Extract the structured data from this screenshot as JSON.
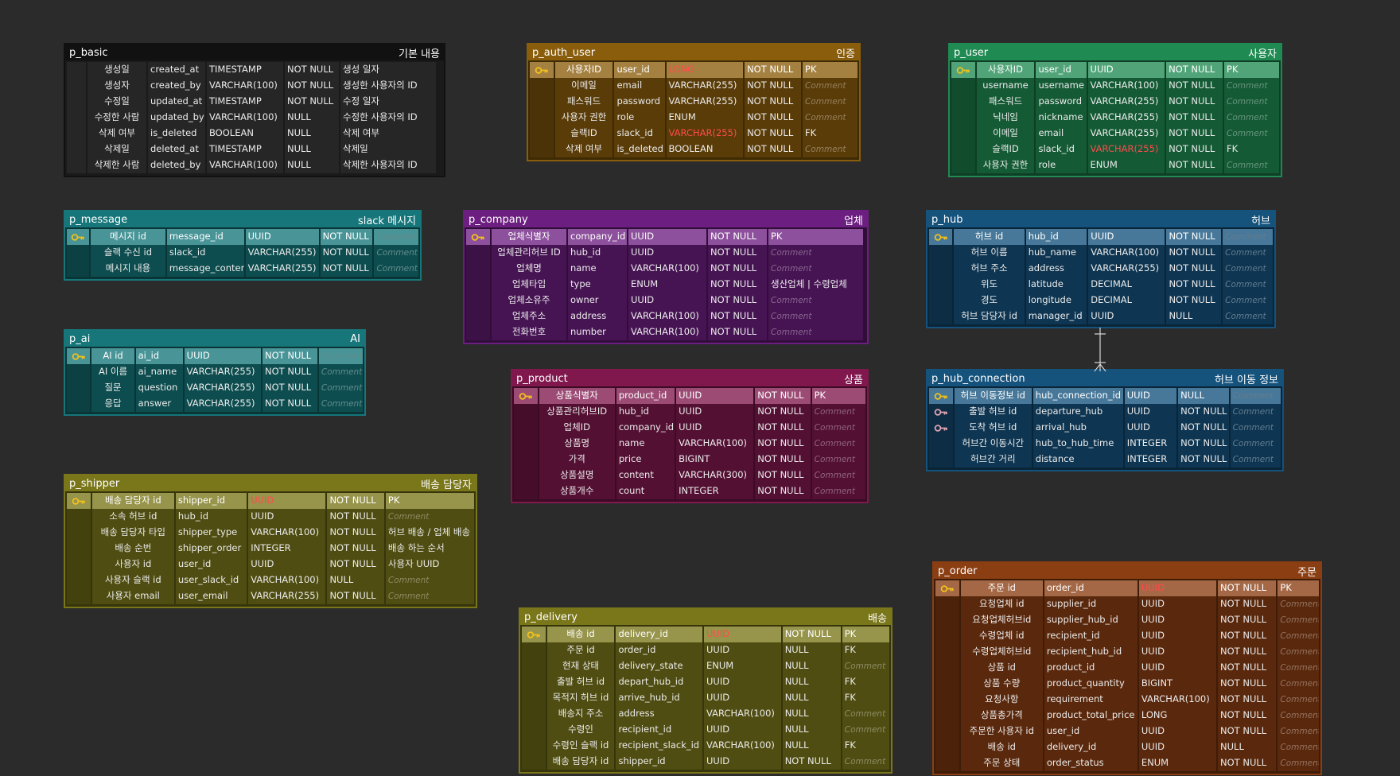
{
  "tables": [
    {
      "id": "p_basic",
      "name": "p_basic",
      "label": "기본 내용",
      "color": "#111111",
      "header_text": "#ffffff",
      "pk_text": "#ffffff",
      "rows": [
        {
          "key": "",
          "cols": [
            "생성일",
            "created_at",
            "TIMESTAMP",
            "NOT NULL",
            "생성 일자"
          ]
        },
        {
          "key": "",
          "cols": [
            "생성자",
            "created_by",
            "VARCHAR(100)",
            "NOT NULL",
            "생성한 사용자의 ID"
          ]
        },
        {
          "key": "",
          "cols": [
            "수정일",
            "updated_at",
            "TIMESTAMP",
            "NOT NULL",
            "수정 일자"
          ]
        },
        {
          "key": "",
          "cols": [
            "수정한 사람",
            "updated_by",
            "VARCHAR(100)",
            "NULL",
            "수정한 사용자의 ID"
          ]
        },
        {
          "key": "",
          "cols": [
            "삭제 여부",
            "is_deleted",
            "BOOLEAN",
            "NULL",
            "삭제 여부"
          ]
        },
        {
          "key": "",
          "cols": [
            "삭제일",
            "deleted_at",
            "TIMESTAMP",
            "NULL",
            "삭제일"
          ]
        },
        {
          "key": "",
          "cols": [
            "삭제한 사람",
            "deleted_by",
            "VARCHAR(100)",
            "NULL",
            "삭제한 사용자의 ID"
          ]
        }
      ]
    },
    {
      "id": "p_auth_user",
      "name": "p_auth_user",
      "label": "인증",
      "color": "#8a5d0c",
      "header_text": "#ffffff",
      "pk_text": "#ffffff",
      "rows": [
        {
          "key": "pk",
          "cols": [
            "사용자ID",
            "user_id",
            "LONG",
            "NOT NULL",
            "PK"
          ],
          "red": [
            2
          ]
        },
        {
          "key": "",
          "cols": [
            "이메일",
            "email",
            "VARCHAR(255)",
            "NOT NULL",
            "Comment"
          ],
          "comment": true
        },
        {
          "key": "",
          "cols": [
            "패스워드",
            "password",
            "VARCHAR(255)",
            "NOT NULL",
            "Comment"
          ],
          "comment": true
        },
        {
          "key": "",
          "cols": [
            "사용자 권한",
            "role",
            "ENUM",
            "NOT NULL",
            "Comment"
          ],
          "comment": true
        },
        {
          "key": "",
          "cols": [
            "슬랙ID",
            "slack_id",
            "VARCHAR(255)",
            "NOT NULL",
            "FK"
          ],
          "red": [
            2
          ]
        },
        {
          "key": "",
          "cols": [
            "삭제 여부",
            "is_deleted",
            "BOOLEAN",
            "NOT NULL",
            "Comment"
          ],
          "comment": true
        }
      ]
    },
    {
      "id": "p_user",
      "name": "p_user",
      "label": "사용자",
      "color": "#1f8a52",
      "header_text": "#ffffff",
      "pk_text": "#ffffff",
      "rows": [
        {
          "key": "pk",
          "cols": [
            "사용자ID",
            "user_id",
            "UUID",
            "NOT NULL",
            "PK"
          ]
        },
        {
          "key": "",
          "cols": [
            "username",
            "username",
            "VARCHAR(100)",
            "NOT NULL",
            "Comment"
          ],
          "comment": true
        },
        {
          "key": "",
          "cols": [
            "패스워드",
            "password",
            "VARCHAR(255)",
            "NOT NULL",
            "Comment"
          ],
          "comment": true
        },
        {
          "key": "",
          "cols": [
            "닉네임",
            "nickname",
            "VARCHAR(255)",
            "NOT NULL",
            "Comment"
          ],
          "comment": true
        },
        {
          "key": "",
          "cols": [
            "이메일",
            "email",
            "VARCHAR(255)",
            "NOT NULL",
            "Comment"
          ],
          "comment": true
        },
        {
          "key": "",
          "cols": [
            "슬랙ID",
            "slack_id",
            "VARCHAR(255)",
            "NOT NULL",
            "FK"
          ],
          "red": [
            2
          ]
        },
        {
          "key": "",
          "cols": [
            "사용자 권한",
            "role",
            "ENUM",
            "NOT NULL",
            "Comment"
          ],
          "comment": true
        }
      ]
    },
    {
      "id": "p_message",
      "name": "p_message",
      "label": "slack 메시지",
      "color": "#16767a",
      "header_text": "#ffffff",
      "pk_text": "#ffffff",
      "rows": [
        {
          "key": "pk",
          "cols": [
            "메시지 id",
            "message_id",
            "UUID",
            "NOT NULL",
            "Comment"
          ],
          "comment": true
        },
        {
          "key": "",
          "cols": [
            "슬랙 수신 id",
            "slack_id",
            "VARCHAR(255)",
            "NOT NULL",
            "Comment"
          ],
          "comment": true
        },
        {
          "key": "",
          "cols": [
            "메시지 내용",
            "message_content",
            "VARCHAR(255)",
            "NOT NULL",
            "Comment"
          ],
          "comment": true
        }
      ]
    },
    {
      "id": "p_company",
      "name": "p_company",
      "label": "업체",
      "color": "#6c1f80",
      "header_text": "#ffffff",
      "pk_text": "#ffffff",
      "rows": [
        {
          "key": "pk",
          "cols": [
            "업체식별자",
            "company_id",
            "UUID",
            "NOT NULL",
            "PK"
          ]
        },
        {
          "key": "",
          "cols": [
            "업체관리허브 ID",
            "hub_id",
            "UUID",
            "NOT NULL",
            "Comment"
          ],
          "comment": true
        },
        {
          "key": "",
          "cols": [
            "업체명",
            "name",
            "VARCHAR(100)",
            "NOT NULL",
            "Comment"
          ],
          "comment": true
        },
        {
          "key": "",
          "cols": [
            "업체타입",
            "type",
            "ENUM",
            "NOT NULL",
            "생산업체 | 수령업체"
          ]
        },
        {
          "key": "",
          "cols": [
            "업체소유주",
            "owner",
            "UUID",
            "NOT NULL",
            "Comment"
          ],
          "comment": true
        },
        {
          "key": "",
          "cols": [
            "업체주소",
            "address",
            "VARCHAR(100)",
            "NOT NULL",
            "Comment"
          ],
          "comment": true
        },
        {
          "key": "",
          "cols": [
            "전화번호",
            "number",
            "VARCHAR(100)",
            "NOT NULL",
            "Comment"
          ],
          "comment": true
        }
      ]
    },
    {
      "id": "p_hub",
      "name": "p_hub",
      "label": "허브",
      "color": "#15527c",
      "header_text": "#ffffff",
      "pk_text": "#ffffff",
      "rows": [
        {
          "key": "pk",
          "cols": [
            "허브 id",
            "hub_id",
            "UUID",
            "NOT NULL",
            "Comment"
          ],
          "comment": true
        },
        {
          "key": "",
          "cols": [
            "허브 이름",
            "hub_name",
            "VARCHAR(100)",
            "NOT NULL",
            "Comment"
          ],
          "comment": true
        },
        {
          "key": "",
          "cols": [
            "허브 주소",
            "address",
            "VARCHAR(255)",
            "NOT NULL",
            "Comment"
          ],
          "comment": true
        },
        {
          "key": "",
          "cols": [
            "위도",
            "latitude",
            "DECIMAL",
            "NOT NULL",
            "Comment"
          ],
          "comment": true
        },
        {
          "key": "",
          "cols": [
            "경도",
            "longitude",
            "DECIMAL",
            "NOT NULL",
            "Comment"
          ],
          "comment": true
        },
        {
          "key": "",
          "cols": [
            "허브 담당자 id",
            "manager_id",
            "UUID",
            "NULL",
            "Comment"
          ],
          "comment": true
        }
      ]
    },
    {
      "id": "p_ai",
      "name": "p_ai",
      "label": "AI",
      "color": "#16767a",
      "header_text": "#ffffff",
      "pk_text": "#ffffff",
      "rows": [
        {
          "key": "pk",
          "cols": [
            "AI id",
            "ai_id",
            "UUID",
            "NOT NULL",
            "Comment"
          ],
          "comment": true
        },
        {
          "key": "",
          "cols": [
            "AI 이름",
            "ai_name",
            "VARCHAR(255)",
            "NOT NULL",
            "Comment"
          ],
          "comment": true
        },
        {
          "key": "",
          "cols": [
            "질문",
            "question",
            "VARCHAR(255)",
            "NOT NULL",
            "Comment"
          ],
          "comment": true
        },
        {
          "key": "",
          "cols": [
            "응답",
            "answer",
            "VARCHAR(255)",
            "NOT NULL",
            "Comment"
          ],
          "comment": true
        }
      ]
    },
    {
      "id": "p_product",
      "name": "p_product",
      "label": "상품",
      "color": "#80184e",
      "header_text": "#ffffff",
      "pk_text": "#ffffff",
      "rows": [
        {
          "key": "pk",
          "cols": [
            "상품식별자",
            "product_id",
            "UUID",
            "NOT NULL",
            "PK"
          ]
        },
        {
          "key": "",
          "cols": [
            "상품관리허브ID",
            "hub_id",
            "UUID",
            "NOT NULL",
            "Comment"
          ],
          "comment": true
        },
        {
          "key": "",
          "cols": [
            "업체ID",
            "company_id",
            "UUID",
            "NOT NULL",
            "Comment"
          ],
          "comment": true
        },
        {
          "key": "",
          "cols": [
            "상품명",
            "name",
            "VARCHAR(100)",
            "NOT NULL",
            "Comment"
          ],
          "comment": true
        },
        {
          "key": "",
          "cols": [
            "가격",
            "price",
            "BIGINT",
            "NOT NULL",
            "Comment"
          ],
          "comment": true
        },
        {
          "key": "",
          "cols": [
            "상품설명",
            "content",
            "VARCHAR(300)",
            "NOT NULL",
            "Comment"
          ],
          "comment": true
        },
        {
          "key": "",
          "cols": [
            "상품개수",
            "count",
            "INTEGER",
            "NOT NULL",
            "Comment"
          ],
          "comment": true
        }
      ]
    },
    {
      "id": "p_hub_connection",
      "name": "p_hub_connection",
      "label": "허브 이동 정보",
      "color": "#15527c",
      "header_text": "#ffffff",
      "pk_text": "#ffffff",
      "rows": [
        {
          "key": "pk",
          "cols": [
            "허브 이동정보 id",
            "hub_connection_id",
            "UUID",
            "NULL",
            "Comment"
          ],
          "comment": true
        },
        {
          "key": "fk",
          "cols": [
            "출발 허브 id",
            "departure_hub",
            "UUID",
            "NOT NULL",
            "Comment"
          ],
          "comment": true
        },
        {
          "key": "fk",
          "cols": [
            "도착 허브 id",
            "arrival_hub",
            "UUID",
            "NOT NULL",
            "Comment"
          ],
          "comment": true
        },
        {
          "key": "",
          "cols": [
            "허브간 이동시간",
            "hub_to_hub_time",
            "INTEGER",
            "NOT NULL",
            "Comment"
          ],
          "comment": true
        },
        {
          "key": "",
          "cols": [
            "허브간 거리",
            "distance",
            "INTEGER",
            "NOT NULL",
            "Comment"
          ],
          "comment": true
        }
      ]
    },
    {
      "id": "p_shipper",
      "name": "p_shipper",
      "label": "배송 담당자",
      "color": "#7a761a",
      "header_text": "#ffffff",
      "pk_text": "#ffffff",
      "rows": [
        {
          "key": "pk",
          "cols": [
            "배송 담당자 id",
            "shipper_id",
            "UUID",
            "NOT NULL",
            "PK"
          ],
          "red": [
            2
          ]
        },
        {
          "key": "",
          "cols": [
            "소속 허브 id",
            "hub_id",
            "UUID",
            "NOT NULL",
            "Comment"
          ],
          "comment": true
        },
        {
          "key": "",
          "cols": [
            "배송 담당자 타입",
            "shipper_type",
            "VARCHAR(100)",
            "NOT NULL",
            "허브 배송 / 업체 배송"
          ]
        },
        {
          "key": "",
          "cols": [
            "배송 순번",
            "shipper_order",
            "INTEGER",
            "NOT NULL",
            "배송 하는 순서"
          ]
        },
        {
          "key": "",
          "cols": [
            "사용자 id",
            "user_id",
            "UUID",
            "NOT NULL",
            "사용자 UUID"
          ]
        },
        {
          "key": "",
          "cols": [
            "사용자 슬랙 id",
            "user_slack_id",
            "VARCHAR(100)",
            "NULL",
            "Comment"
          ],
          "comment": true
        },
        {
          "key": "",
          "cols": [
            "사용자 email",
            "user_email",
            "VARCHAR(255)",
            "NOT NULL",
            "Comment"
          ],
          "comment": true
        }
      ]
    },
    {
      "id": "p_delivery",
      "name": "p_delivery",
      "label": "배송",
      "color": "#7a761a",
      "header_text": "#ffffff",
      "pk_text": "#ffffff",
      "rows": [
        {
          "key": "pk",
          "cols": [
            "배송 id",
            "delivery_id",
            "UUID",
            "NOT NULL",
            "PK"
          ],
          "red": [
            2
          ]
        },
        {
          "key": "",
          "cols": [
            "주문 id",
            "order_id",
            "UUID",
            "NULL",
            "FK"
          ]
        },
        {
          "key": "",
          "cols": [
            "현재 상태",
            "delivery_state",
            "ENUM",
            "NULL",
            "Comment"
          ],
          "comment": true
        },
        {
          "key": "",
          "cols": [
            "출발 허브 id",
            "depart_hub_id",
            "UUID",
            "NULL",
            "FK"
          ]
        },
        {
          "key": "",
          "cols": [
            "목적지 허브 id",
            "arrive_hub_id",
            "UUID",
            "NULL",
            "FK"
          ]
        },
        {
          "key": "",
          "cols": [
            "배송지 주소",
            "address",
            "VARCHAR(100)",
            "NULL",
            "Comment"
          ],
          "comment": true
        },
        {
          "key": "",
          "cols": [
            "수령인",
            "recipient_id",
            "UUID",
            "NULL",
            "Comment"
          ],
          "comment": true
        },
        {
          "key": "",
          "cols": [
            "수령인 슬랙 id",
            "recipient_slack_id",
            "VARCHAR(100)",
            "NULL",
            "FK"
          ]
        },
        {
          "key": "",
          "cols": [
            "배송 담당자 id",
            "shipper_id",
            "UUID",
            "NOT NULL",
            "Comment"
          ],
          "comment": true
        }
      ]
    },
    {
      "id": "p_order",
      "name": "p_order",
      "label": "주문",
      "color": "#8a3e12",
      "header_text": "#ffffff",
      "pk_text": "#ffffff",
      "rows": [
        {
          "key": "pk",
          "cols": [
            "주문 id",
            "order_id",
            "UUID",
            "NOT NULL",
            "PK"
          ],
          "red": [
            2
          ]
        },
        {
          "key": "",
          "cols": [
            "요청업체 id",
            "supplier_id",
            "UUID",
            "NOT NULL",
            "Comment"
          ],
          "comment": true
        },
        {
          "key": "",
          "cols": [
            "요청업체허브id",
            "supplier_hub_id",
            "UUID",
            "NOT NULL",
            "Comment"
          ],
          "comment": true
        },
        {
          "key": "",
          "cols": [
            "수령업체 id",
            "recipient_id",
            "UUID",
            "NOT NULL",
            "Comment"
          ],
          "comment": true
        },
        {
          "key": "",
          "cols": [
            "수령업체허브id",
            "recipient_hub_id",
            "UUID",
            "NOT NULL",
            "Comment"
          ],
          "comment": true
        },
        {
          "key": "",
          "cols": [
            "상품 id",
            "product_id",
            "UUID",
            "NOT NULL",
            "Comment"
          ],
          "comment": true
        },
        {
          "key": "",
          "cols": [
            "상품 수량",
            "product_quantity",
            "BIGINT",
            "NOT NULL",
            "Comment"
          ],
          "comment": true
        },
        {
          "key": "",
          "cols": [
            "요청사항",
            "requirement",
            "VARCHAR(100)",
            "NOT NULL",
            "Comment"
          ],
          "comment": true
        },
        {
          "key": "",
          "cols": [
            "상품총가격",
            "product_total_price",
            "LONG",
            "NOT NULL",
            "Comment"
          ],
          "comment": true
        },
        {
          "key": "",
          "cols": [
            "주문한 사용자 id",
            "user_id",
            "UUID",
            "NOT NULL",
            "Comment"
          ],
          "comment": true
        },
        {
          "key": "",
          "cols": [
            "배송 id",
            "delivery_id",
            "UUID",
            "NULL",
            "Comment"
          ],
          "comment": true
        },
        {
          "key": "",
          "cols": [
            "주문 상태",
            "order_status",
            "ENUM",
            "NOT NULL",
            "Comment"
          ],
          "comment": true
        }
      ]
    }
  ],
  "relations": [
    {
      "from": "p_hub",
      "to": "p_hub_connection",
      "type": "one-to-many"
    }
  ]
}
